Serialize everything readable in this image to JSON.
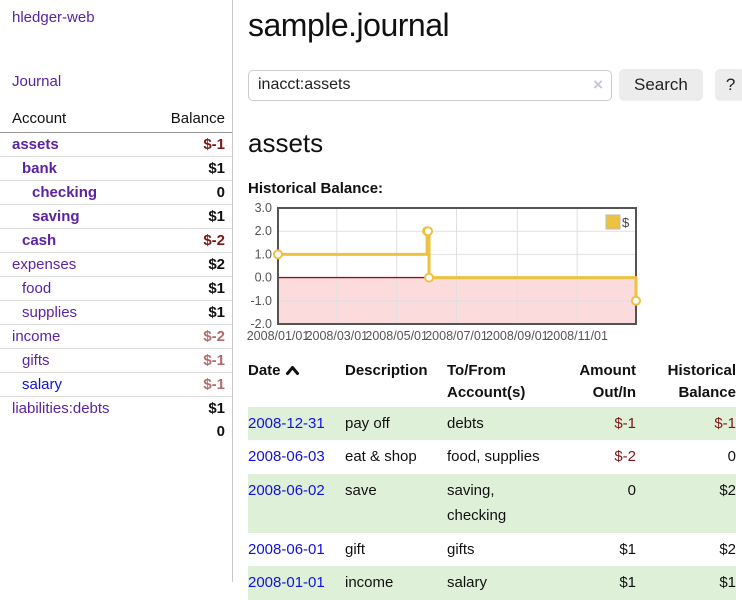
{
  "app": {
    "brand": "hledger-web",
    "nav_journal": "Journal"
  },
  "colors": {
    "link_purple": "#5b23a3",
    "link_blue": "#1111dd",
    "negative_strong": "#7e1616",
    "negative_muted": "#b56a6a",
    "row_stripe_green": "#dff0d8",
    "chart_gold": "#edc240",
    "chart_negative_region": "#fbdbdb",
    "chart_zero_line": "#8b1a1a"
  },
  "sidebar": {
    "header": {
      "account": "Account",
      "balance": "Balance"
    },
    "accounts": [
      {
        "name": "assets",
        "balance": "$-1",
        "indent": 0,
        "bold": true,
        "neg": "strong",
        "link": "purple"
      },
      {
        "name": "bank",
        "balance": "$1",
        "indent": 1,
        "bold": true,
        "neg": "none",
        "link": "purple"
      },
      {
        "name": "checking",
        "balance": "0",
        "indent": 2,
        "bold": true,
        "neg": "none",
        "link": "purple"
      },
      {
        "name": "saving",
        "balance": "$1",
        "indent": 2,
        "bold": true,
        "neg": "none",
        "link": "purple"
      },
      {
        "name": "cash",
        "balance": "$-2",
        "indent": 1,
        "bold": true,
        "neg": "strong",
        "link": "purple"
      },
      {
        "name": "expenses",
        "balance": "$2",
        "indent": 0,
        "bold": false,
        "neg": "none",
        "link": "purple"
      },
      {
        "name": "food",
        "balance": "$1",
        "indent": 1,
        "bold": false,
        "neg": "none",
        "link": "purple"
      },
      {
        "name": "supplies",
        "balance": "$1",
        "indent": 1,
        "bold": false,
        "neg": "none",
        "link": "purple"
      },
      {
        "name": "income",
        "balance": "$-2",
        "indent": 0,
        "bold": false,
        "neg": "muted",
        "link": "purple"
      },
      {
        "name": "gifts",
        "balance": "$-1",
        "indent": 1,
        "bold": false,
        "neg": "muted",
        "link": "purple"
      },
      {
        "name": "salary",
        "balance": "$-1",
        "indent": 1,
        "bold": false,
        "neg": "muted",
        "link": "blue"
      },
      {
        "name": "liabilities:debts",
        "balance": "$1",
        "indent": 0,
        "bold": false,
        "neg": "none",
        "link": "purple"
      }
    ],
    "total": "0"
  },
  "header": {
    "title": "sample.journal"
  },
  "search": {
    "value": "inacct:assets",
    "clear_icon": "×",
    "button": "Search",
    "help_button": "?"
  },
  "account_page": {
    "heading": "assets",
    "chart_label": "Historical Balance:"
  },
  "chart_data": {
    "type": "line",
    "title": "Historical Balance:",
    "series": [
      {
        "name": "$",
        "color": "#edc240",
        "step": true,
        "points": [
          {
            "date": "2008-01-01",
            "value": 1
          },
          {
            "date": "2008-06-01",
            "value": 2
          },
          {
            "date": "2008-06-02",
            "value": 2
          },
          {
            "date": "2008-06-03",
            "value": 0
          },
          {
            "date": "2008-12-31",
            "value": -1
          }
        ]
      }
    ],
    "x_range": [
      "2008-01-01",
      "2008-12-31"
    ],
    "ylim": [
      -2,
      3
    ],
    "x_ticks": [
      {
        "date": "2008-01-01",
        "label": "2008/01/01"
      },
      {
        "date": "2008-03-01",
        "label": "2008/03/01"
      },
      {
        "date": "2008-05-01",
        "label": "2008/05/01"
      },
      {
        "date": "2008-07-01",
        "label": "2008/07/01"
      },
      {
        "date": "2008-09-01",
        "label": "2008/09/01"
      },
      {
        "date": "2008-11-01",
        "label": "2008/11/01"
      }
    ],
    "y_ticks": [
      {
        "value": 3,
        "label": "3.0"
      },
      {
        "value": 2,
        "label": "2.0"
      },
      {
        "value": 1,
        "label": "1.0"
      },
      {
        "value": 0,
        "label": "0.0"
      },
      {
        "value": -1,
        "label": "-1.0"
      },
      {
        "value": -2,
        "label": "-2.0"
      }
    ],
    "grid": true,
    "legend_position": "top-right",
    "negative_region_color": "#fbdbdb",
    "zero_line_color": "#8b1a1a"
  },
  "register": {
    "columns": [
      {
        "lines": [
          "Date"
        ],
        "align": "left",
        "icon": "chevron-up-icon"
      },
      {
        "lines": [
          "Description"
        ],
        "align": "left"
      },
      {
        "lines": [
          "To/From",
          "Account(s)"
        ],
        "align": "left"
      },
      {
        "lines": [
          "Amount",
          "Out/In"
        ],
        "align": "right"
      },
      {
        "lines": [
          "Historical",
          "Balance"
        ],
        "align": "right"
      }
    ],
    "rows": [
      {
        "date": "2008-12-31",
        "description": "pay off",
        "accounts": "debts",
        "amount": "$-1",
        "balance": "$-1",
        "stripe": true
      },
      {
        "date": "2008-06-03",
        "description": "eat & shop",
        "accounts": "food, supplies",
        "amount": "$-2",
        "balance": "0",
        "stripe": false
      },
      {
        "date": "2008-06-02",
        "description": "save",
        "accounts": "saving, checking",
        "amount": "0",
        "balance": "$2",
        "stripe": true
      },
      {
        "date": "2008-06-01",
        "description": "gift",
        "accounts": "gifts",
        "amount": "$1",
        "balance": "$2",
        "stripe": false
      },
      {
        "date": "2008-01-01",
        "description": "income",
        "accounts": "salary",
        "amount": "$1",
        "balance": "$1",
        "stripe": true
      }
    ]
  }
}
